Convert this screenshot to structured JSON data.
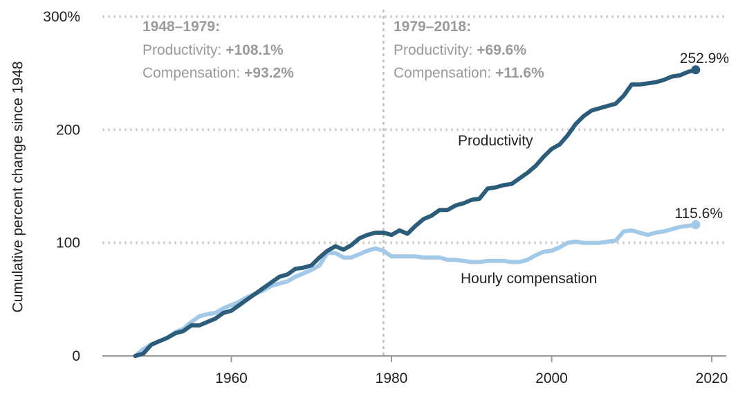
{
  "chart_data": {
    "type": "line",
    "ylabel": "Cumulative percent change since 1948",
    "xlim": [
      1944,
      2022
    ],
    "ylim": [
      0,
      300
    ],
    "x_ticks": [
      {
        "value": 1960,
        "label": "1960"
      },
      {
        "value": 1980,
        "label": "1980"
      },
      {
        "value": 2000,
        "label": "2000"
      },
      {
        "value": 2020,
        "label": "2020"
      }
    ],
    "y_ticks": [
      {
        "value": 0,
        "label": "0"
      },
      {
        "value": 100,
        "label": "100"
      },
      {
        "value": 200,
        "label": "200"
      },
      {
        "value": 300,
        "label": "300%"
      }
    ],
    "grid": true,
    "period_divider_x": 1979,
    "annotations": [
      {
        "period": "1948–1979:",
        "productivity_prefix": "Productivity: ",
        "productivity_value": "+108.1%",
        "compensation_prefix": "Compensation: ",
        "compensation_value": "+93.2%"
      },
      {
        "period": "1979–2018:",
        "productivity_prefix": "Productivity: ",
        "productivity_value": "+69.6%",
        "compensation_prefix": "Compensation: ",
        "compensation_value": "+11.6%"
      }
    ],
    "series": [
      {
        "name": "Productivity",
        "color": "#2b5c7a",
        "end_label": "252.9%",
        "x": [
          1948,
          1949,
          1950,
          1951,
          1952,
          1953,
          1954,
          1955,
          1956,
          1957,
          1958,
          1959,
          1960,
          1961,
          1962,
          1963,
          1964,
          1965,
          1966,
          1967,
          1968,
          1969,
          1970,
          1971,
          1972,
          1973,
          1974,
          1975,
          1976,
          1977,
          1978,
          1979,
          1980,
          1981,
          1982,
          1983,
          1984,
          1985,
          1986,
          1987,
          1988,
          1989,
          1990,
          1991,
          1992,
          1993,
          1994,
          1995,
          1996,
          1997,
          1998,
          1999,
          2000,
          2001,
          2002,
          2003,
          2004,
          2005,
          2006,
          2007,
          2008,
          2009,
          2010,
          2011,
          2012,
          2013,
          2014,
          2015,
          2016,
          2017,
          2018
        ],
        "values": [
          0,
          2,
          10,
          13,
          16,
          20,
          22,
          27,
          27,
          30,
          33,
          38,
          40,
          45,
          50,
          55,
          60,
          65,
          70,
          72,
          77,
          78,
          80,
          87,
          93,
          97,
          94,
          98,
          104,
          107,
          109,
          109,
          107,
          111,
          108,
          115,
          121,
          124,
          129,
          129,
          133,
          135,
          138,
          139,
          148,
          149,
          151,
          152,
          157,
          162,
          168,
          176,
          183,
          187,
          195,
          205,
          212,
          217,
          219,
          221,
          223,
          230,
          240,
          240,
          241,
          242,
          244,
          247,
          248,
          251,
          253
        ]
      },
      {
        "name": "Hourly compensation",
        "color": "#a3c9e8",
        "end_label": "115.6%",
        "x": [
          1948,
          1949,
          1950,
          1951,
          1952,
          1953,
          1954,
          1955,
          1956,
          1957,
          1958,
          1959,
          1960,
          1961,
          1962,
          1963,
          1964,
          1965,
          1966,
          1967,
          1968,
          1969,
          1970,
          1971,
          1972,
          1973,
          1974,
          1975,
          1976,
          1977,
          1978,
          1979,
          1980,
          1981,
          1982,
          1983,
          1984,
          1985,
          1986,
          1987,
          1988,
          1989,
          1990,
          1991,
          1992,
          1993,
          1994,
          1995,
          1996,
          1997,
          1998,
          1999,
          2000,
          2001,
          2002,
          2003,
          2004,
          2005,
          2006,
          2007,
          2008,
          2009,
          2010,
          2011,
          2012,
          2013,
          2014,
          2015,
          2016,
          2017,
          2018
        ],
        "values": [
          0,
          6,
          10,
          13,
          16,
          21,
          24,
          30,
          35,
          37,
          38,
          42,
          45,
          48,
          52,
          55,
          58,
          62,
          64,
          66,
          70,
          73,
          76,
          80,
          91,
          91,
          87,
          87,
          90,
          93,
          95,
          93,
          88,
          88,
          88,
          88,
          87,
          87,
          87,
          85,
          85,
          84,
          83,
          83,
          84,
          84,
          84,
          83,
          83,
          85,
          89,
          92,
          93,
          96,
          100,
          101,
          100,
          100,
          100,
          101,
          102,
          110,
          111,
          109,
          107,
          109,
          110,
          112,
          114,
          115,
          116
        ]
      }
    ]
  }
}
